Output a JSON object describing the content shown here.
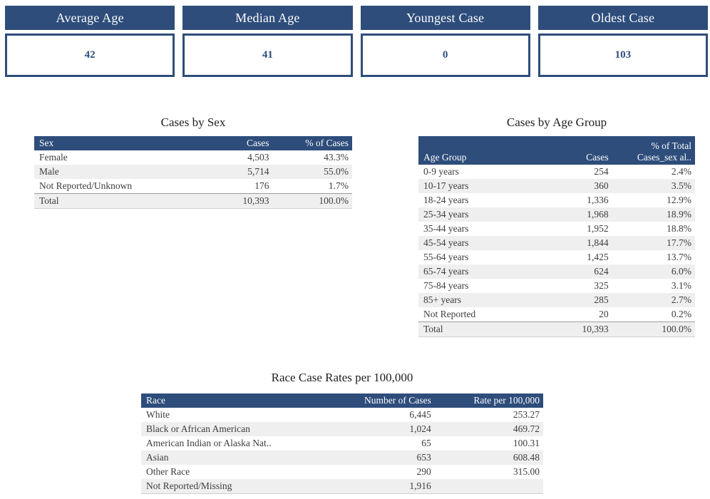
{
  "colors": {
    "header_blue": "#2e4d7b",
    "stripe_gray": "#efefef",
    "card_value_blue": "#2e4d7b"
  },
  "kpi_cards": [
    {
      "label": "Average Age",
      "value": "42"
    },
    {
      "label": "Median Age",
      "value": "41"
    },
    {
      "label": "Youngest Case",
      "value": "0"
    },
    {
      "label": "Oldest Case",
      "value": "103"
    }
  ],
  "chart_data": [
    {
      "type": "table",
      "name": "cases_by_sex",
      "title": "Cases by Sex",
      "columns": [
        "Sex",
        "Cases",
        "% of Cases"
      ],
      "rows": [
        [
          "Female",
          "4,503",
          "43.3%"
        ],
        [
          "Male",
          "5,714",
          "55.0%"
        ],
        [
          "Not Reported/Unknown",
          "176",
          "1.7%"
        ]
      ],
      "total": [
        "Total",
        "10,393",
        "100.0%"
      ]
    },
    {
      "type": "table",
      "name": "cases_by_age_group",
      "title": "Cases by Age Group",
      "columns": [
        "Age Group",
        "Cases",
        "% of Total\nCases_sex al.."
      ],
      "rows": [
        [
          "0-9 years",
          "254",
          "2.4%"
        ],
        [
          "10-17 years",
          "360",
          "3.5%"
        ],
        [
          "18-24 years",
          "1,336",
          "12.9%"
        ],
        [
          "25-34 years",
          "1,968",
          "18.9%"
        ],
        [
          "35-44 years",
          "1,952",
          "18.8%"
        ],
        [
          "45-54 years",
          "1,844",
          "17.7%"
        ],
        [
          "55-64 years",
          "1,425",
          "13.7%"
        ],
        [
          "65-74 years",
          "624",
          "6.0%"
        ],
        [
          "75-84 years",
          "325",
          "3.1%"
        ],
        [
          "85+ years",
          "285",
          "2.7%"
        ],
        [
          "Not Reported",
          "20",
          "0.2%"
        ]
      ],
      "total": [
        "Total",
        "10,393",
        "100.0%"
      ]
    },
    {
      "type": "table",
      "name": "race_case_rates",
      "title": "Race Case Rates per 100,000",
      "columns": [
        "Race",
        "Number of Cases",
        "Rate per 100,000"
      ],
      "rows": [
        [
          "White",
          "6,445",
          "253.27"
        ],
        [
          "Black or African American",
          "1,024",
          "469.72"
        ],
        [
          "American Indian or Alaska Nat..",
          "65",
          "100.31"
        ],
        [
          "Asian",
          "653",
          "608.48"
        ],
        [
          "Other Race",
          "290",
          "315.00"
        ],
        [
          "Not Reported/Missing",
          "1,916",
          ""
        ]
      ]
    }
  ]
}
